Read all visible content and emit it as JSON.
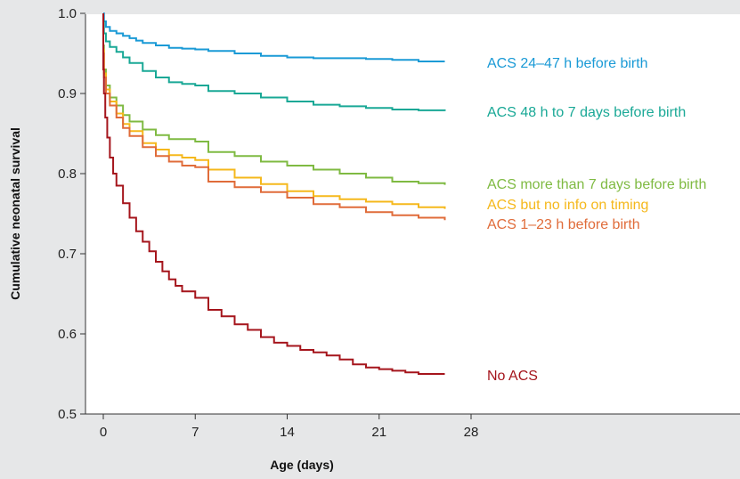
{
  "chart_data": {
    "type": "line",
    "xlabel": "Age (days)",
    "ylabel": "Cumulative neonatal survival",
    "xlim": [
      0,
      28
    ],
    "ylim": [
      0.5,
      1.0
    ],
    "x_ticks": [
      0,
      7,
      14,
      21,
      28
    ],
    "x_tick_labels": [
      "0",
      "7",
      "14",
      "21",
      "28"
    ],
    "y_ticks": [
      0.5,
      0.6,
      0.7,
      0.8,
      0.9,
      1.0
    ],
    "y_tick_labels": [
      "0.5",
      "0.6",
      "0.7",
      "0.8",
      "0.9",
      "1.0"
    ],
    "grid": false,
    "legend": "inline labels at right end of each curve",
    "series": [
      {
        "name": "ACS 24–47 h before birth",
        "color": "#1a9ad6",
        "x": [
          0,
          0.05,
          0.2,
          0.5,
          1,
          1.5,
          2,
          2.5,
          3,
          4,
          5,
          6,
          7,
          8,
          10,
          12,
          14,
          16,
          18,
          20,
          22,
          24,
          26
        ],
        "y": [
          1.0,
          0.99,
          0.983,
          0.978,
          0.975,
          0.972,
          0.969,
          0.966,
          0.963,
          0.96,
          0.957,
          0.956,
          0.955,
          0.953,
          0.95,
          0.947,
          0.945,
          0.944,
          0.944,
          0.943,
          0.942,
          0.94,
          0.94
        ]
      },
      {
        "name": "ACS 48 h to 7 days before birth",
        "color": "#19a896",
        "x": [
          0,
          0.05,
          0.2,
          0.5,
          1,
          1.5,
          2,
          3,
          4,
          5,
          6,
          7,
          8,
          10,
          12,
          14,
          16,
          18,
          20,
          22,
          24,
          26
        ],
        "y": [
          0.99,
          0.975,
          0.965,
          0.958,
          0.952,
          0.945,
          0.938,
          0.928,
          0.92,
          0.914,
          0.912,
          0.91,
          0.903,
          0.9,
          0.895,
          0.89,
          0.886,
          0.884,
          0.882,
          0.88,
          0.879,
          0.878
        ]
      },
      {
        "name": "ACS more than 7 days before birth",
        "color": "#7fba42",
        "x": [
          0,
          0.05,
          0.2,
          0.5,
          1,
          1.5,
          2,
          3,
          4,
          5,
          6,
          7,
          8,
          10,
          12,
          14,
          16,
          18,
          20,
          22,
          24,
          26
        ],
        "y": [
          0.96,
          0.93,
          0.91,
          0.895,
          0.885,
          0.873,
          0.865,
          0.855,
          0.848,
          0.843,
          0.843,
          0.84,
          0.827,
          0.822,
          0.815,
          0.81,
          0.805,
          0.8,
          0.795,
          0.79,
          0.788,
          0.786
        ]
      },
      {
        "name": "ACS but no info on timing",
        "color": "#f5b81c",
        "x": [
          0,
          0.05,
          0.2,
          0.5,
          1,
          1.5,
          2,
          3,
          4,
          5,
          6,
          7,
          8,
          10,
          12,
          14,
          16,
          18,
          20,
          22,
          24,
          26
        ],
        "y": [
          0.955,
          0.925,
          0.905,
          0.89,
          0.875,
          0.862,
          0.853,
          0.838,
          0.83,
          0.823,
          0.82,
          0.817,
          0.805,
          0.795,
          0.787,
          0.778,
          0.772,
          0.768,
          0.765,
          0.762,
          0.758,
          0.756
        ]
      },
      {
        "name": "ACS 1–23 h before birth",
        "color": "#e06c3a",
        "x": [
          0,
          0.05,
          0.2,
          0.5,
          1,
          1.5,
          2,
          3,
          4,
          5,
          6,
          7,
          8,
          10,
          12,
          14,
          16,
          18,
          20,
          22,
          24,
          26
        ],
        "y": [
          0.95,
          0.92,
          0.9,
          0.885,
          0.87,
          0.857,
          0.847,
          0.833,
          0.822,
          0.815,
          0.81,
          0.808,
          0.79,
          0.783,
          0.777,
          0.77,
          0.762,
          0.758,
          0.752,
          0.748,
          0.745,
          0.742
        ]
      },
      {
        "name": "No ACS",
        "color": "#a5151c",
        "x": [
          0,
          0.05,
          0.15,
          0.3,
          0.5,
          0.75,
          1,
          1.5,
          2,
          2.5,
          3,
          3.5,
          4,
          4.5,
          5,
          5.5,
          6,
          7,
          8,
          9,
          10,
          11,
          12,
          13,
          14,
          15,
          16,
          17,
          18,
          19,
          20,
          21,
          22,
          23,
          24,
          26
        ],
        "y": [
          0.93,
          0.9,
          0.87,
          0.845,
          0.82,
          0.8,
          0.785,
          0.763,
          0.745,
          0.728,
          0.715,
          0.703,
          0.69,
          0.678,
          0.668,
          0.66,
          0.653,
          0.645,
          0.63,
          0.622,
          0.612,
          0.605,
          0.596,
          0.589,
          0.585,
          0.58,
          0.577,
          0.573,
          0.568,
          0.562,
          0.558,
          0.556,
          0.554,
          0.552,
          0.55,
          0.55
        ]
      }
    ]
  }
}
